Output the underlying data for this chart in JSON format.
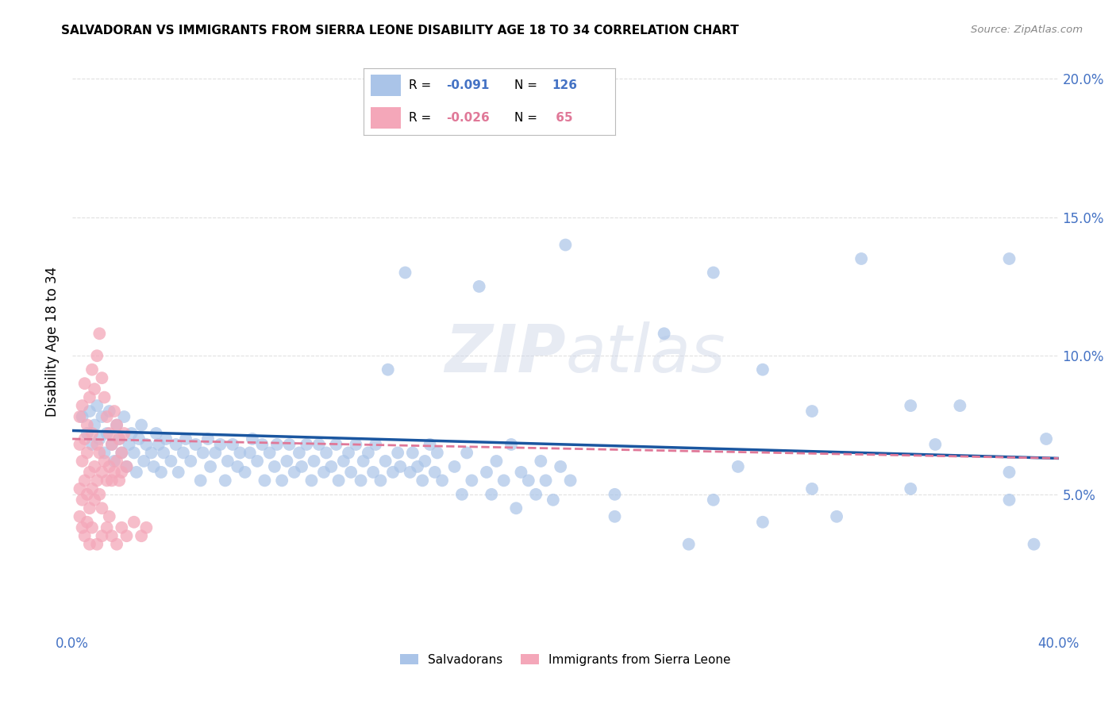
{
  "title": "SALVADORAN VS IMMIGRANTS FROM SIERRA LEONE DISABILITY AGE 18 TO 34 CORRELATION CHART",
  "source": "Source: ZipAtlas.com",
  "ylabel": "Disability Age 18 to 34",
  "xlim": [
    0.0,
    0.4
  ],
  "ylim": [
    0.0,
    0.21
  ],
  "yticks": [
    0.05,
    0.1,
    0.15,
    0.2
  ],
  "ytick_labels": [
    "5.0%",
    "10.0%",
    "15.0%",
    "20.0%"
  ],
  "xticks": [
    0.0,
    0.1,
    0.2,
    0.3,
    0.4
  ],
  "xtick_labels": [
    "0.0%",
    "",
    "",
    "",
    "40.0%"
  ],
  "salvadoran_color": "#aac4e8",
  "sierra_leone_color": "#f4a7b9",
  "legend_salvadoran": "Salvadorans",
  "legend_sierra_leone": "Immigrants from Sierra Leone",
  "watermark": "ZIPatlas",
  "background_color": "#ffffff",
  "grid_color": "#e0e0e0",
  "axis_color": "#4472c4",
  "trendline_blue": "#1a56a0",
  "trendline_pink": "#e07898",
  "salvadoran_points": [
    [
      0.004,
      0.078
    ],
    [
      0.006,
      0.072
    ],
    [
      0.007,
      0.08
    ],
    [
      0.008,
      0.068
    ],
    [
      0.009,
      0.075
    ],
    [
      0.01,
      0.082
    ],
    [
      0.011,
      0.07
    ],
    [
      0.012,
      0.078
    ],
    [
      0.013,
      0.065
    ],
    [
      0.014,
      0.072
    ],
    [
      0.015,
      0.08
    ],
    [
      0.016,
      0.068
    ],
    [
      0.017,
      0.062
    ],
    [
      0.018,
      0.075
    ],
    [
      0.019,
      0.07
    ],
    [
      0.02,
      0.065
    ],
    [
      0.021,
      0.078
    ],
    [
      0.022,
      0.06
    ],
    [
      0.023,
      0.068
    ],
    [
      0.024,
      0.072
    ],
    [
      0.025,
      0.065
    ],
    [
      0.026,
      0.058
    ],
    [
      0.027,
      0.07
    ],
    [
      0.028,
      0.075
    ],
    [
      0.029,
      0.062
    ],
    [
      0.03,
      0.068
    ],
    [
      0.032,
      0.065
    ],
    [
      0.033,
      0.06
    ],
    [
      0.034,
      0.072
    ],
    [
      0.035,
      0.068
    ],
    [
      0.036,
      0.058
    ],
    [
      0.037,
      0.065
    ],
    [
      0.038,
      0.07
    ],
    [
      0.04,
      0.062
    ],
    [
      0.042,
      0.068
    ],
    [
      0.043,
      0.058
    ],
    [
      0.045,
      0.065
    ],
    [
      0.046,
      0.07
    ],
    [
      0.048,
      0.062
    ],
    [
      0.05,
      0.068
    ],
    [
      0.052,
      0.055
    ],
    [
      0.053,
      0.065
    ],
    [
      0.055,
      0.07
    ],
    [
      0.056,
      0.06
    ],
    [
      0.058,
      0.065
    ],
    [
      0.06,
      0.068
    ],
    [
      0.062,
      0.055
    ],
    [
      0.063,
      0.062
    ],
    [
      0.065,
      0.068
    ],
    [
      0.067,
      0.06
    ],
    [
      0.068,
      0.065
    ],
    [
      0.07,
      0.058
    ],
    [
      0.072,
      0.065
    ],
    [
      0.073,
      0.07
    ],
    [
      0.075,
      0.062
    ],
    [
      0.077,
      0.068
    ],
    [
      0.078,
      0.055
    ],
    [
      0.08,
      0.065
    ],
    [
      0.082,
      0.06
    ],
    [
      0.083,
      0.068
    ],
    [
      0.085,
      0.055
    ],
    [
      0.087,
      0.062
    ],
    [
      0.088,
      0.068
    ],
    [
      0.09,
      0.058
    ],
    [
      0.092,
      0.065
    ],
    [
      0.093,
      0.06
    ],
    [
      0.095,
      0.068
    ],
    [
      0.097,
      0.055
    ],
    [
      0.098,
      0.062
    ],
    [
      0.1,
      0.068
    ],
    [
      0.102,
      0.058
    ],
    [
      0.103,
      0.065
    ],
    [
      0.105,
      0.06
    ],
    [
      0.107,
      0.068
    ],
    [
      0.108,
      0.055
    ],
    [
      0.11,
      0.062
    ],
    [
      0.112,
      0.065
    ],
    [
      0.113,
      0.058
    ],
    [
      0.115,
      0.068
    ],
    [
      0.117,
      0.055
    ],
    [
      0.118,
      0.062
    ],
    [
      0.12,
      0.065
    ],
    [
      0.122,
      0.058
    ],
    [
      0.123,
      0.068
    ],
    [
      0.125,
      0.055
    ],
    [
      0.127,
      0.062
    ],
    [
      0.128,
      0.095
    ],
    [
      0.13,
      0.058
    ],
    [
      0.132,
      0.065
    ],
    [
      0.133,
      0.06
    ],
    [
      0.135,
      0.13
    ],
    [
      0.137,
      0.058
    ],
    [
      0.138,
      0.065
    ],
    [
      0.14,
      0.06
    ],
    [
      0.142,
      0.055
    ],
    [
      0.143,
      0.062
    ],
    [
      0.145,
      0.068
    ],
    [
      0.147,
      0.058
    ],
    [
      0.148,
      0.065
    ],
    [
      0.15,
      0.055
    ],
    [
      0.155,
      0.06
    ],
    [
      0.158,
      0.05
    ],
    [
      0.16,
      0.065
    ],
    [
      0.162,
      0.055
    ],
    [
      0.165,
      0.125
    ],
    [
      0.168,
      0.058
    ],
    [
      0.17,
      0.05
    ],
    [
      0.172,
      0.062
    ],
    [
      0.175,
      0.055
    ],
    [
      0.178,
      0.068
    ],
    [
      0.18,
      0.045
    ],
    [
      0.182,
      0.058
    ],
    [
      0.185,
      0.055
    ],
    [
      0.188,
      0.05
    ],
    [
      0.19,
      0.062
    ],
    [
      0.192,
      0.055
    ],
    [
      0.195,
      0.048
    ],
    [
      0.198,
      0.06
    ],
    [
      0.2,
      0.14
    ],
    [
      0.202,
      0.055
    ],
    [
      0.22,
      0.05
    ],
    [
      0.22,
      0.042
    ],
    [
      0.24,
      0.108
    ],
    [
      0.25,
      0.032
    ],
    [
      0.26,
      0.13
    ],
    [
      0.26,
      0.048
    ],
    [
      0.27,
      0.06
    ],
    [
      0.28,
      0.095
    ],
    [
      0.28,
      0.04
    ],
    [
      0.3,
      0.08
    ],
    [
      0.3,
      0.052
    ],
    [
      0.31,
      0.042
    ],
    [
      0.32,
      0.135
    ],
    [
      0.34,
      0.082
    ],
    [
      0.34,
      0.052
    ],
    [
      0.35,
      0.068
    ],
    [
      0.36,
      0.082
    ],
    [
      0.38,
      0.135
    ],
    [
      0.38,
      0.058
    ],
    [
      0.38,
      0.048
    ],
    [
      0.39,
      0.032
    ],
    [
      0.395,
      0.07
    ]
  ],
  "sierra_leone_points": [
    [
      0.003,
      0.078
    ],
    [
      0.004,
      0.082
    ],
    [
      0.005,
      0.09
    ],
    [
      0.006,
      0.075
    ],
    [
      0.007,
      0.085
    ],
    [
      0.008,
      0.095
    ],
    [
      0.009,
      0.088
    ],
    [
      0.01,
      0.1
    ],
    [
      0.011,
      0.108
    ],
    [
      0.012,
      0.092
    ],
    [
      0.013,
      0.085
    ],
    [
      0.014,
      0.078
    ],
    [
      0.015,
      0.072
    ],
    [
      0.016,
      0.068
    ],
    [
      0.017,
      0.08
    ],
    [
      0.018,
      0.075
    ],
    [
      0.019,
      0.07
    ],
    [
      0.02,
      0.065
    ],
    [
      0.021,
      0.072
    ],
    [
      0.022,
      0.06
    ],
    [
      0.003,
      0.068
    ],
    [
      0.004,
      0.062
    ],
    [
      0.005,
      0.07
    ],
    [
      0.006,
      0.065
    ],
    [
      0.007,
      0.058
    ],
    [
      0.008,
      0.072
    ],
    [
      0.009,
      0.06
    ],
    [
      0.01,
      0.068
    ],
    [
      0.011,
      0.065
    ],
    [
      0.012,
      0.058
    ],
    [
      0.013,
      0.062
    ],
    [
      0.014,
      0.055
    ],
    [
      0.015,
      0.06
    ],
    [
      0.016,
      0.055
    ],
    [
      0.017,
      0.058
    ],
    [
      0.018,
      0.062
    ],
    [
      0.019,
      0.055
    ],
    [
      0.02,
      0.058
    ],
    [
      0.003,
      0.052
    ],
    [
      0.004,
      0.048
    ],
    [
      0.005,
      0.055
    ],
    [
      0.006,
      0.05
    ],
    [
      0.007,
      0.045
    ],
    [
      0.008,
      0.052
    ],
    [
      0.009,
      0.048
    ],
    [
      0.01,
      0.055
    ],
    [
      0.011,
      0.05
    ],
    [
      0.012,
      0.045
    ],
    [
      0.003,
      0.042
    ],
    [
      0.004,
      0.038
    ],
    [
      0.005,
      0.035
    ],
    [
      0.006,
      0.04
    ],
    [
      0.007,
      0.032
    ],
    [
      0.008,
      0.038
    ],
    [
      0.01,
      0.032
    ],
    [
      0.012,
      0.035
    ],
    [
      0.014,
      0.038
    ],
    [
      0.015,
      0.042
    ],
    [
      0.016,
      0.035
    ],
    [
      0.018,
      0.032
    ],
    [
      0.02,
      0.038
    ],
    [
      0.022,
      0.035
    ],
    [
      0.025,
      0.04
    ],
    [
      0.028,
      0.035
    ],
    [
      0.03,
      0.038
    ]
  ]
}
